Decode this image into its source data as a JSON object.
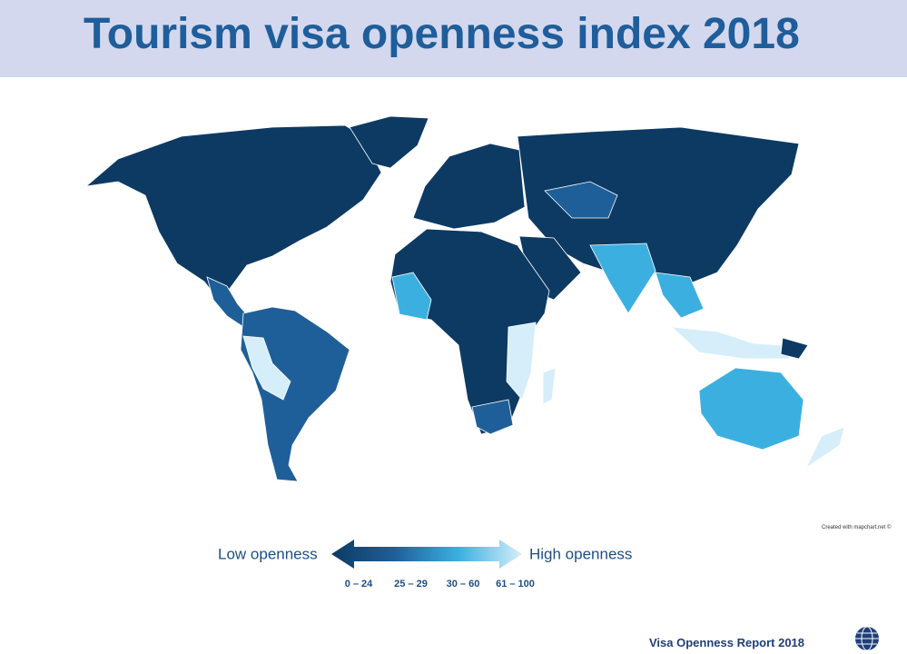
{
  "header": {
    "title": "Tourism visa openness index 2018"
  },
  "map": {
    "credit": "Created with mapchart.net ©"
  },
  "legend": {
    "low_label": "Low openness",
    "high_label": "High openness",
    "bins": [
      {
        "label": "0 – 24",
        "color": "#0d3a63"
      },
      {
        "label": "25 – 29",
        "color": "#1f5f99"
      },
      {
        "label": "30 – 60",
        "color": "#3bb0e0"
      },
      {
        "label": "61 – 100",
        "color": "#d6eef9"
      }
    ]
  },
  "footer": {
    "report": "Visa Openness Report 2018"
  }
}
